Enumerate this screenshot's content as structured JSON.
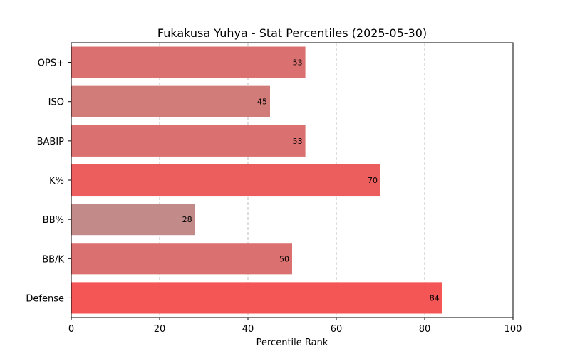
{
  "chart_data": {
    "type": "bar",
    "orientation": "horizontal",
    "title": "Fukakusa Yuhya - Stat Percentiles (2025-05-30)",
    "xlabel": "Percentile Rank",
    "ylabel": "",
    "xlim": [
      0,
      100
    ],
    "xticks": [
      0,
      20,
      40,
      60,
      80,
      100
    ],
    "grid": "x-dashed",
    "categories": [
      "OPS+",
      "ISO",
      "BABIP",
      "K%",
      "BB%",
      "BB/K",
      "Defense"
    ],
    "values": [
      53,
      45,
      53,
      70,
      28,
      50,
      84
    ],
    "colors": [
      "#da706f",
      "#d17c79",
      "#da706f",
      "#ec5e5e",
      "#c28b89",
      "#da706f",
      "#f45656"
    ]
  }
}
